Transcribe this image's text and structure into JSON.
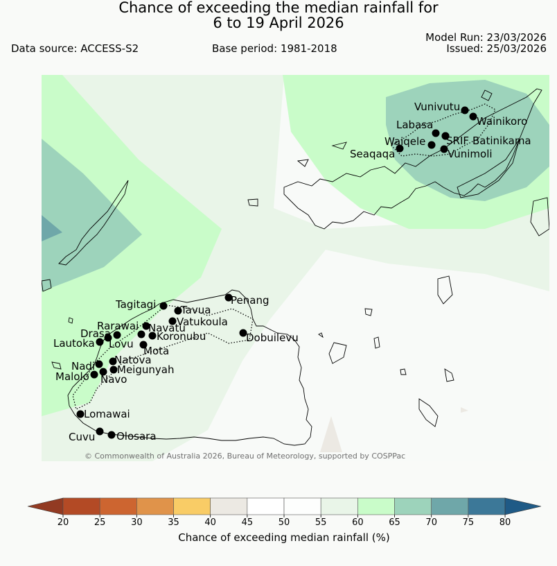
{
  "header": {
    "title_line1": "Chance of exceeding the median rainfall for",
    "title_line2": "6 to 19 April 2026",
    "data_source": "Data source: ACCESS-S2",
    "base_period": "Base period: 1981-2018",
    "model_run": "Model Run: 23/03/2026",
    "issued": "Issued: 25/03/2026"
  },
  "map": {
    "copyright": "© Commonwealth of Australia 2026, Bureau of Meteorology, supported by COSPPac",
    "stations": [
      {
        "name": "Vunivutu",
        "lon": 671,
        "lat": 159
      },
      {
        "name": "Wainikoro",
        "lon": 683,
        "lat": 168
      },
      {
        "name": "Labasa",
        "lon": 629,
        "lat": 192
      },
      {
        "name": "SRIF",
        "lon": 643,
        "lat": 196
      },
      {
        "name": "Batinikama",
        "lon": 643,
        "lat": 196
      },
      {
        "name": "Waiqele",
        "lon": 623,
        "lat": 209
      },
      {
        "name": "Vunimoli",
        "lon": 641,
        "lat": 215
      },
      {
        "name": "Seaqaqa",
        "lon": 577,
        "lat": 214
      },
      {
        "name": "Penang",
        "lon": 330,
        "lat": 429
      },
      {
        "name": "Tagitagi",
        "lon": 236,
        "lat": 441
      },
      {
        "name": "Tavua",
        "lon": 257,
        "lat": 448
      },
      {
        "name": "Vatukoula",
        "lon": 249,
        "lat": 463
      },
      {
        "name": "Rarawai",
        "lon": 211,
        "lat": 470
      },
      {
        "name": "Navatu",
        "lon": 204,
        "lat": 482
      },
      {
        "name": "Koronubu",
        "lon": 220,
        "lat": 484
      },
      {
        "name": "Drasa",
        "lon": 156,
        "lat": 487
      },
      {
        "name": "Lautoka",
        "lon": 144,
        "lat": 493
      },
      {
        "name": "Lovu",
        "lon": 169,
        "lat": 483
      },
      {
        "name": "Mota",
        "lon": 207,
        "lat": 497
      },
      {
        "name": "Dobuilevu",
        "lon": 351,
        "lat": 480
      },
      {
        "name": "Natova",
        "lon": 163,
        "lat": 521
      },
      {
        "name": "Nadi",
        "lon": 143,
        "lat": 525
      },
      {
        "name": "Meigunyah",
        "lon": 164,
        "lat": 533
      },
      {
        "name": "Navo",
        "lon": 149,
        "lat": 536
      },
      {
        "name": "Malolo",
        "lon": 136,
        "lat": 540
      },
      {
        "name": "Lomawai",
        "lon": 116,
        "lat": 597
      },
      {
        "name": "Cuvu",
        "lon": 144,
        "lat": 622
      },
      {
        "name": "Olosara",
        "lon": 161,
        "lat": 627
      }
    ]
  },
  "legend": {
    "label": "Chance of exceeding median rainfall (%)",
    "ticks": [
      "20",
      "25",
      "30",
      "35",
      "40",
      "45",
      "50",
      "55",
      "60",
      "65",
      "70",
      "75",
      "80"
    ],
    "colors": [
      "#b34a25",
      "#cd6530",
      "#e0934a",
      "#f9cc66",
      "#ece9e3",
      "#ffffff",
      "#fdfefd",
      "#e9f5e8",
      "#c9fcc9",
      "#9dd3bb",
      "#6fa7a9",
      "#3c7898"
    ],
    "under_color": "#923a22",
    "over_color": "#1f5a86"
  }
}
